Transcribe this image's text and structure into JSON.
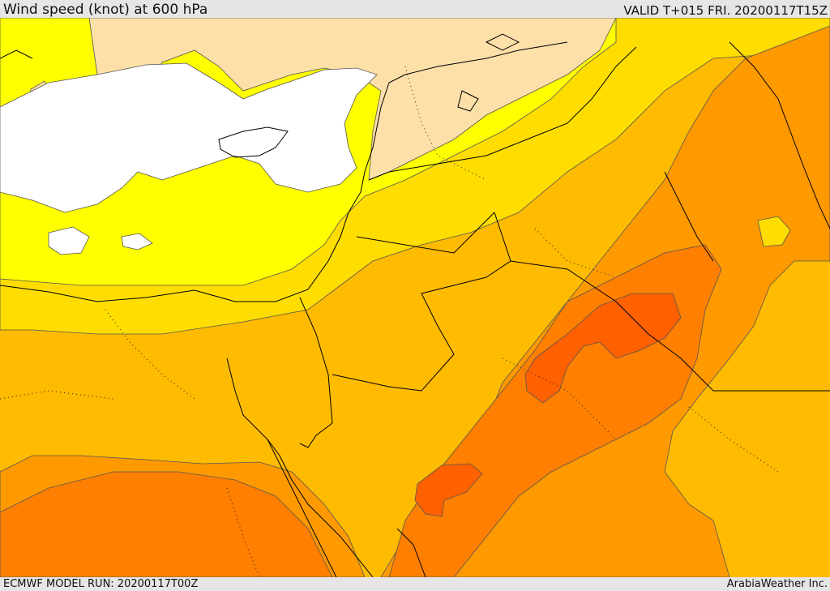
{
  "header": {
    "title": "Wind speed (knot) at 600 hPa",
    "valid": "VALID T+015 FRI. 20200117T15Z"
  },
  "footer": {
    "model_run": "ECMWF MODEL RUN: 20200117T00Z",
    "credit": "ArabiaWeather Inc."
  },
  "map": {
    "field": "wind speed",
    "level": "600 hPa",
    "unit": "knot",
    "shading_colors": {
      "calm": "#ffffff",
      "light": "#fde0a8",
      "moderate": "#ffff00",
      "fresh": "#ffdd00",
      "strong": "#ffbb00",
      "stronger": "#ff9900",
      "very_strong": "#ff7f00",
      "strongest": "#ff6000"
    },
    "border_color": "#000000",
    "contour_color": "#555555"
  }
}
